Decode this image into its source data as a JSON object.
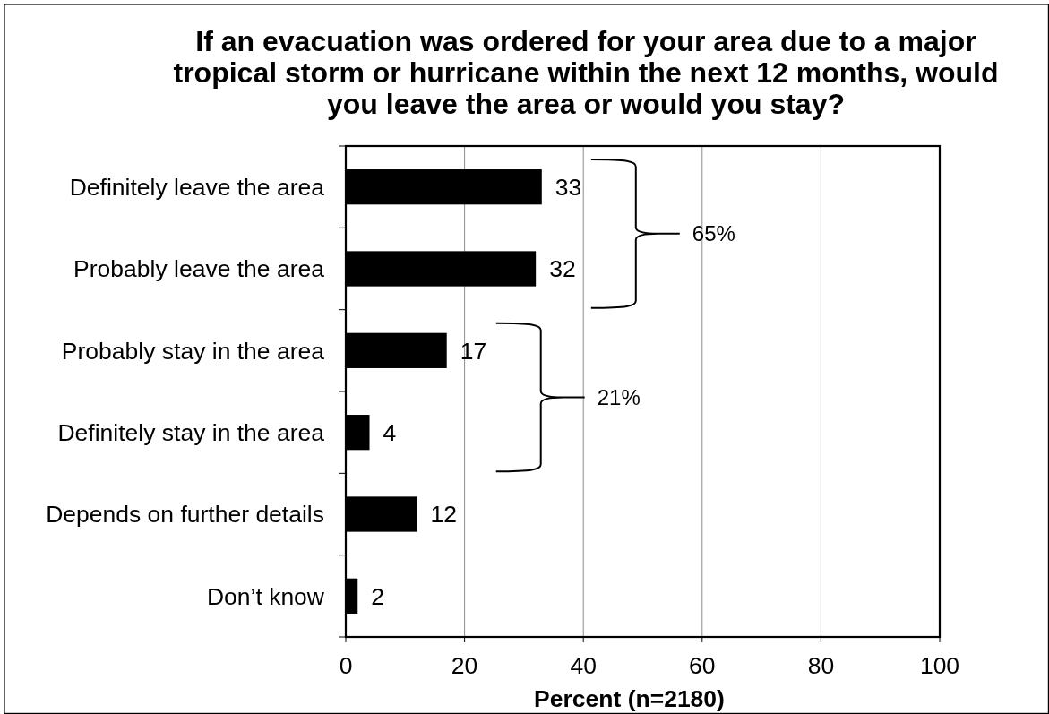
{
  "chart_data": {
    "type": "bar",
    "orientation": "horizontal",
    "title": "If an evacuation was ordered for your area due to a major tropical storm or hurricane within the next 12 months, would you leave the area or would you stay?",
    "xlabel": "Percent (n=2180)",
    "categories": [
      "Definitely leave the area",
      "Probably leave the area",
      "Probably stay in the area",
      "Definitely stay in the area",
      "Depends on further details",
      "Don’t know"
    ],
    "values": [
      33,
      32,
      17,
      4,
      12,
      2
    ],
    "color": "#000000",
    "xlim": [
      0,
      100
    ],
    "xticks": [
      0,
      20,
      40,
      60,
      80,
      100
    ],
    "grid": "x",
    "data_labels": true,
    "annotations": [
      "65%",
      "21%"
    ]
  }
}
